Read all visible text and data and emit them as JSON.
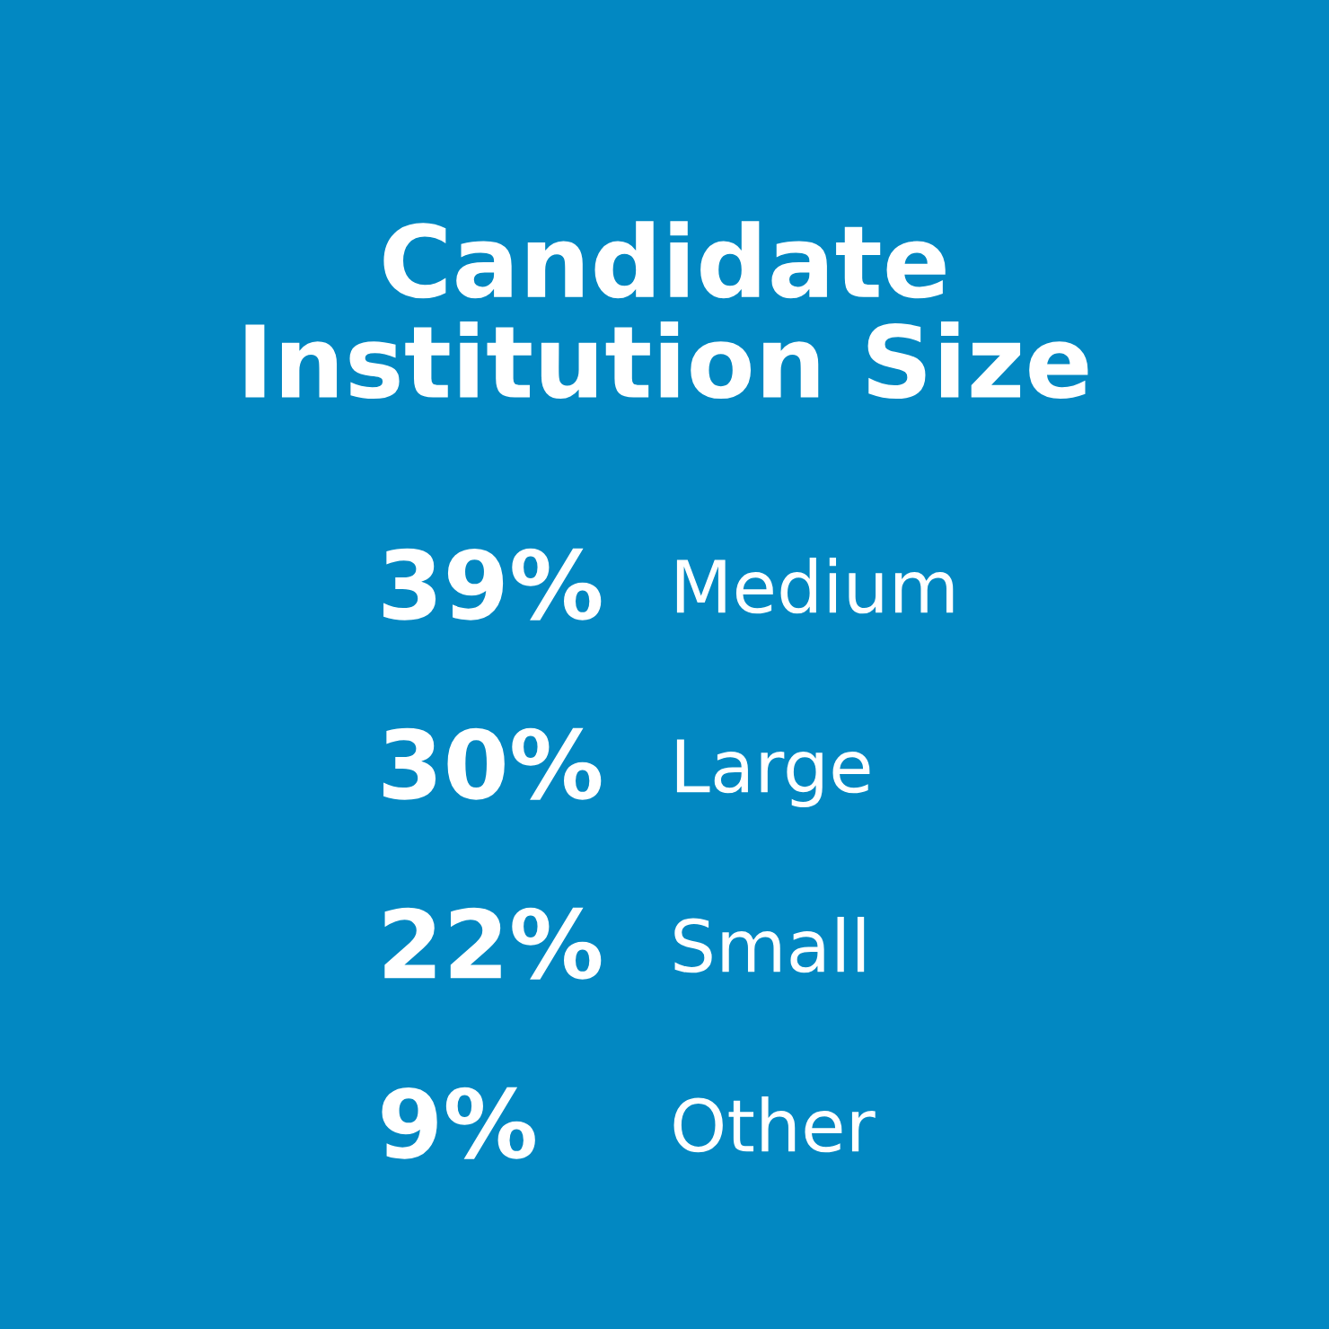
{
  "chart_data": {
    "type": "other",
    "title": "Candidate\nInstitution Size",
    "categories": [
      "Medium",
      "Large",
      "Small",
      "Other"
    ],
    "values": [
      39,
      30,
      22,
      9
    ],
    "value_labels": [
      "39%",
      "30%",
      "22%",
      "9%"
    ],
    "color": "#0288c2"
  }
}
